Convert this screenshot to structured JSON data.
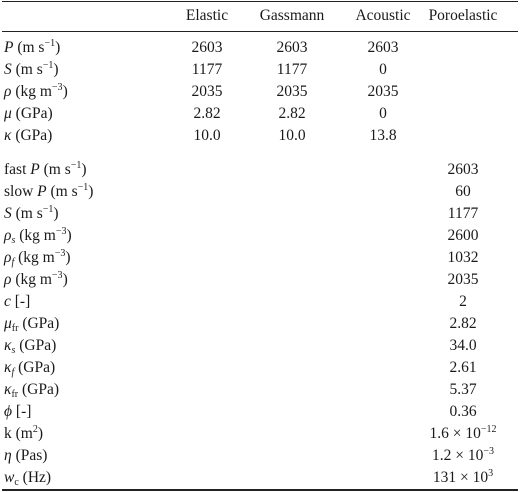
{
  "table": {
    "headers": [
      "",
      "Elastic",
      "Gassmann",
      "Acoustic",
      "Poroelastic"
    ],
    "section1": [
      {
        "values": [
          "2603",
          "2603",
          "2603"
        ]
      },
      {
        "values": [
          "1177",
          "1177",
          "0"
        ]
      },
      {
        "values": [
          "2035",
          "2035",
          "2035"
        ]
      },
      {
        "values": [
          "2.82",
          "2.82",
          "0"
        ]
      },
      {
        "values": [
          "10.0",
          "10.0",
          "13.8"
        ]
      }
    ],
    "section2": [
      {
        "value": "2603"
      },
      {
        "value": "60"
      },
      {
        "value": "1177"
      },
      {
        "value": "2600"
      },
      {
        "value": "1032"
      },
      {
        "value": "2035"
      },
      {
        "value": "2"
      },
      {
        "value": "2.82"
      },
      {
        "value": "34.0"
      },
      {
        "value": "2.61"
      },
      {
        "value": "5.37"
      },
      {
        "value": "0.36"
      },
      {
        "value": "1.6 × 10"
      },
      {
        "value": "1.2 × 10"
      },
      {
        "value": "131 × 10"
      }
    ],
    "labels": {
      "r1_sym": "P",
      "r1_unit": " (m s",
      "r1_exp": "−1",
      "r1_end": ")",
      "r2_sym": "S",
      "r2_unit": " (m s",
      "r2_exp": "−1",
      "r2_end": ")",
      "r3_sym": "ρ",
      "r3_unit": " (kg m",
      "r3_exp": "−3",
      "r3_end": ")",
      "r4_sym": "μ",
      "r4_unit": " (GPa)",
      "r5_sym": "κ",
      "r5_unit": " (GPa)",
      "p1_pre": "fast ",
      "p1_sym": "P",
      "p1_unit": " (m s",
      "p1_exp": "−1",
      "p1_end": ")",
      "p2_pre": "slow ",
      "p2_sym": "P",
      "p2_unit": " (m s",
      "p2_exp": "−1",
      "p2_end": ")",
      "p3_sym": "S",
      "p3_unit": " (m s",
      "p3_exp": "−1",
      "p3_end": ")",
      "p4_sym": "ρ",
      "p4_sub": "s",
      "p4_unit": " (kg m",
      "p4_exp": "−3",
      "p4_end": ")",
      "p5_sym": "ρ",
      "p5_sub": "f",
      "p5_unit": " (kg m",
      "p5_exp": "−3",
      "p5_end": ")",
      "p6_sym": "ρ",
      "p6_unit": " (kg m",
      "p6_exp": "−3",
      "p6_end": ")",
      "p7_sym": "c",
      "p7_unit": " [-]",
      "p8_sym": "μ",
      "p8_sub": "fr",
      "p8_unit": " (GPa)",
      "p9_sym": "κ",
      "p9_sub": "s",
      "p9_unit": " (GPa)",
      "p10_sym": "κ",
      "p10_sub": "f",
      "p10_unit": " (GPa)",
      "p11_sym": "κ",
      "p11_sub": "fr",
      "p11_unit": " (GPa)",
      "p12_sym": "ϕ",
      "p12_unit": " [-]",
      "p13_text": "k (m",
      "p13_exp": "2",
      "p13_end": ")",
      "p14_sym": "η",
      "p14_unit": " (Pas)",
      "p15_sym": "w",
      "p15_sub": "c",
      "p15_unit": " (Hz)"
    },
    "exponents": {
      "p13": "−12",
      "p14": "−3",
      "p15": "3"
    }
  }
}
